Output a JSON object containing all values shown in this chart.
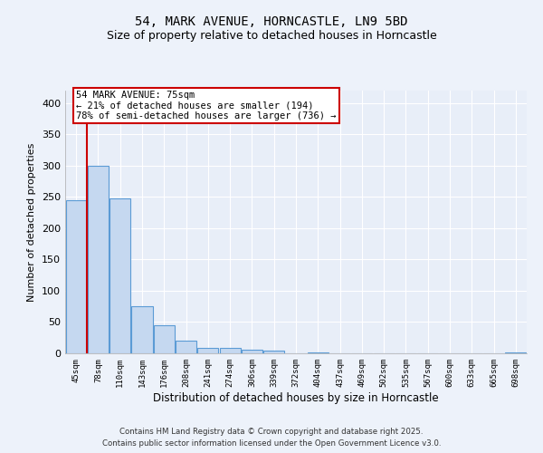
{
  "title1": "54, MARK AVENUE, HORNCASTLE, LN9 5BD",
  "title2": "Size of property relative to detached houses in Horncastle",
  "xlabel": "Distribution of detached houses by size in Horncastle",
  "ylabel": "Number of detached properties",
  "categories": [
    "45sqm",
    "78sqm",
    "110sqm",
    "143sqm",
    "176sqm",
    "208sqm",
    "241sqm",
    "274sqm",
    "306sqm",
    "339sqm",
    "372sqm",
    "404sqm",
    "437sqm",
    "469sqm",
    "502sqm",
    "535sqm",
    "567sqm",
    "600sqm",
    "633sqm",
    "665sqm",
    "698sqm"
  ],
  "values": [
    245,
    300,
    248,
    75,
    45,
    21,
    9,
    8,
    6,
    4,
    0,
    2,
    0,
    0,
    0,
    0,
    0,
    0,
    0,
    0,
    2
  ],
  "bar_color": "#c5d8f0",
  "bar_edge_color": "#5b9bd5",
  "vline_color": "#cc0000",
  "annotation_text": "54 MARK AVENUE: 75sqm\n← 21% of detached houses are smaller (194)\n78% of semi-detached houses are larger (736) →",
  "annotation_box_color": "#cc0000",
  "ylim": [
    0,
    420
  ],
  "yticks": [
    0,
    50,
    100,
    150,
    200,
    250,
    300,
    350,
    400
  ],
  "background_color": "#e8eef8",
  "grid_color": "#ffffff",
  "fig_bg_color": "#edf2fa",
  "title1_fontsize": 10,
  "title2_fontsize": 9,
  "footer_line1": "Contains HM Land Registry data © Crown copyright and database right 2025.",
  "footer_line2": "Contains public sector information licensed under the Open Government Licence v3.0."
}
